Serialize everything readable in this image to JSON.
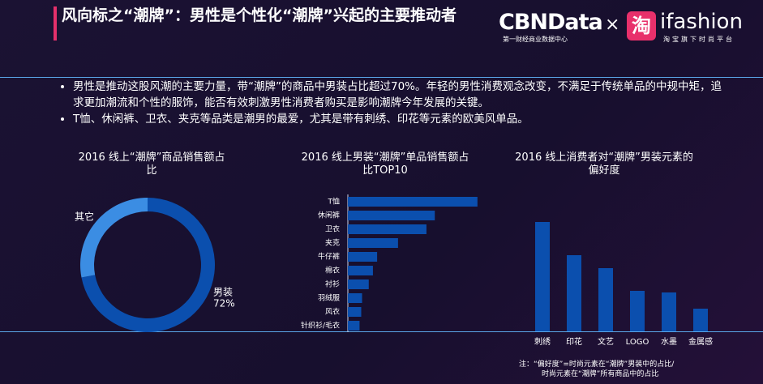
{
  "header": {
    "title": "风向标之“潮牌”：男性是个性化“潮牌”兴起的主要推动者",
    "logo_left": "CBNData",
    "logo_left_sub": "第一财经商业数据中心",
    "times": "×",
    "logo_icon": "淘",
    "logo_right": "ifashion",
    "logo_right_sub": "淘宝旗下时尚平台"
  },
  "bullets": [
    "男性是推动这股风潮的主要力量，带“潮牌”的商品中男装占比超过70%。年轻的男性消费观念改变，不满足于传统单品的中规中矩，追求更加潮流和个性的服饰，能否有效刺激男性消费者购买是影响潮牌今年发展的关键。",
    "T恤、休闲裤、卫衣、夹克等品类是潮男的最爱，尤其是带有刺绣、印花等元素的欧美风单品。"
  ],
  "note": [
    "注：“偏好度”=时尚元素在“潮牌”男装中的占比/",
    "时尚元素在“潮牌”所有商品中的占比"
  ],
  "chart_data": [
    {
      "type": "pie",
      "title": "2016 线上“潮牌”商品销售额占比",
      "categories": [
        "男装",
        "其它"
      ],
      "values": [
        72,
        28
      ],
      "value_labels": [
        "72%",
        null
      ],
      "colors": [
        "#0b4fae",
        "#3b8de3"
      ]
    },
    {
      "type": "hbar",
      "title": "2016 线上男装“潮牌”单品销售额占比TOP10",
      "categories": [
        "T恤",
        "休闲裤",
        "卫衣",
        "夹克",
        "牛仔裤",
        "棉衣",
        "衬衫",
        "羽绒服",
        "风衣",
        "针织衫/毛衣"
      ],
      "values": [
        155,
        104,
        94,
        60,
        35,
        30,
        25,
        17,
        16,
        14
      ],
      "xlim": [
        0,
        160
      ],
      "color": "#0b4fae"
    },
    {
      "type": "bar",
      "title": "2016 线上消费者对“潮牌”男装元素的偏好度",
      "categories": [
        "刺绣",
        "印花",
        "文艺",
        "LOGO",
        "水墨",
        "金属感"
      ],
      "values": [
        135,
        94,
        78,
        50,
        48,
        28
      ],
      "ylim": [
        0,
        140
      ],
      "color": "#0b4fae"
    }
  ]
}
